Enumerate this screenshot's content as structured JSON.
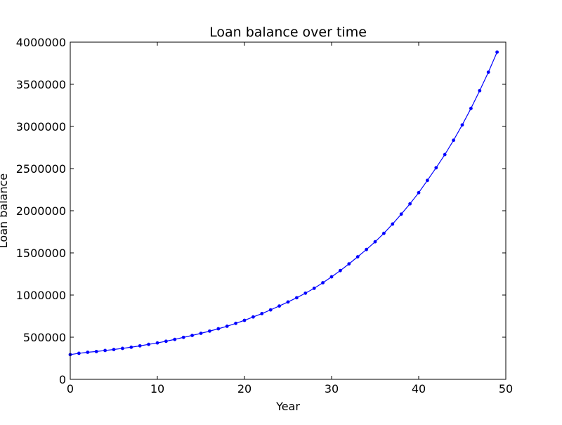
{
  "chart_data": {
    "type": "line",
    "title": "Loan balance over time",
    "xlabel": "Year",
    "ylabel": "Loan balance",
    "xlim": [
      0,
      50
    ],
    "ylim": [
      0,
      4000000
    ],
    "xticks": [
      0,
      10,
      20,
      30,
      40,
      50
    ],
    "xtick_labels": [
      "0",
      "10",
      "20",
      "30",
      "40",
      "50"
    ],
    "yticks": [
      0,
      500000,
      1000000,
      1500000,
      2000000,
      2500000,
      3000000,
      3500000,
      4000000
    ],
    "ytick_labels": [
      "0",
      "500000",
      "1000000",
      "1500000",
      "2000000",
      "2500000",
      "3000000",
      "3500000",
      "4000000"
    ],
    "grid": false,
    "legend": "none",
    "series": [
      {
        "color": "#0000ff",
        "marker": "dot",
        "x": [
          0,
          1,
          2,
          3,
          4,
          5,
          6,
          7,
          8,
          9,
          10,
          11,
          12,
          13,
          14,
          15,
          16,
          17,
          18,
          19,
          20,
          21,
          22,
          23,
          24,
          25,
          26,
          27,
          28,
          29,
          30,
          31,
          32,
          33,
          34,
          35,
          36,
          37,
          38,
          39,
          40,
          41,
          42,
          43,
          44,
          45,
          46,
          47,
          48,
          49
        ],
        "y": [
          293000,
          309000,
          321000,
          330000,
          342000,
          354000,
          367000,
          381000,
          397000,
          415000,
          432000,
          452000,
          474000,
          498000,
          521000,
          546000,
          572000,
          600000,
          630000,
          664000,
          700000,
          740000,
          780000,
          824000,
          870000,
          918000,
          968000,
          1022000,
          1080000,
          1146000,
          1216000,
          1290000,
          1370000,
          1454000,
          1540000,
          1632000,
          1732000,
          1842000,
          1960000,
          2082000,
          2214000,
          2360000,
          2510000,
          2666000,
          2836000,
          3018000,
          3214000,
          3424000,
          3644000,
          3882000
        ]
      }
    ]
  }
}
